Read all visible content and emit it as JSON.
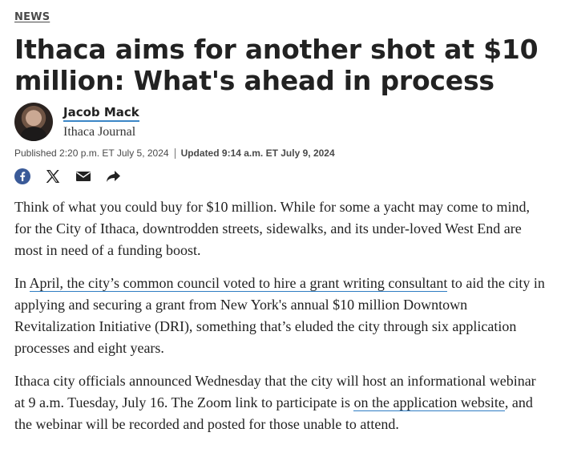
{
  "section": {
    "label": "NEWS"
  },
  "headline": "Ithaca aims for another shot at $10 million: What's ahead in process",
  "author": {
    "name": "Jacob Mack",
    "org": "Ithaca Journal"
  },
  "dates": {
    "published": "Published 2:20 p.m. ET July 5, 2024",
    "updated": "Updated 9:14 a.m. ET July 9, 2024"
  },
  "share": [
    "facebook-icon",
    "x-icon",
    "email-icon",
    "share-icon"
  ],
  "article": {
    "p1": "Think of what you could buy for $10 million. While for some a yacht may come to mind, for the City of Ithaca, downtrodden streets, sidewalks, and its under-loved West End are most in need of a funding boost.",
    "p2_before": "In ",
    "p2_link1": "April",
    "p2_link2": ", the city’s common council voted to hire a grant writing consultant",
    "p2_after": " to aid the city in applying and securing a grant from New York's annual $10 million Downtown Revitalization Initiative (DRI), something that’s eluded the city through six application processes and eight years.",
    "p3_before": "Ithaca city officials announced Wednesday that the city will host an informational webinar at 9 a.m. Tuesday, July 16. The Zoom link to participate is ",
    "p3_link": "on the application website",
    "p3_after": ", and the webinar will be recorded and posted for those unable to attend."
  }
}
